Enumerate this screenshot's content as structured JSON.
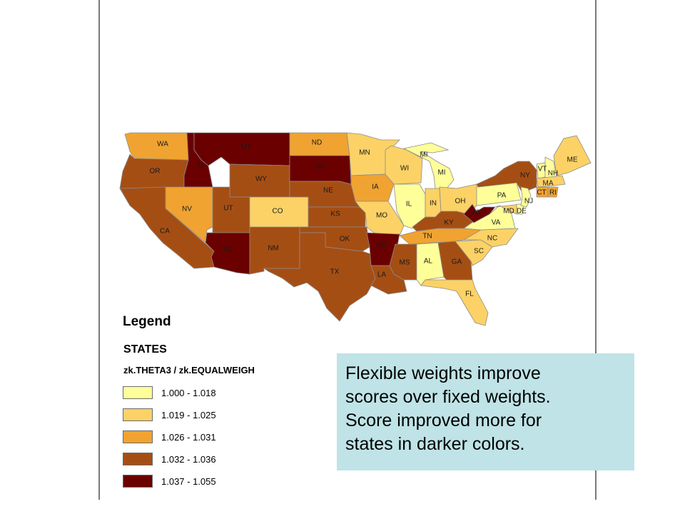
{
  "colors": {
    "c1": "#ffff99",
    "c2": "#fcd266",
    "c3": "#f0a330",
    "c4": "#a54e14",
    "c5": "#6b0000"
  },
  "legend": {
    "title": "Legend",
    "layer": "STATES",
    "field": "zk.THETA3 / zk.EQUALWEIGH",
    "classes": [
      {
        "label": "1.000 - 1.018",
        "color": "#ffff99"
      },
      {
        "label": "1.019 - 1.025",
        "color": "#fcd266"
      },
      {
        "label": "1.026 - 1.031",
        "color": "#f0a330"
      },
      {
        "label": "1.032 - 1.036",
        "color": "#a54e14"
      },
      {
        "label": "1.037 - 1.055",
        "color": "#6b0000"
      }
    ]
  },
  "states": [
    {
      "abbr": "WA",
      "class": 3
    },
    {
      "abbr": "OR",
      "class": 4
    },
    {
      "abbr": "CA",
      "class": 4
    },
    {
      "abbr": "ID",
      "class": 5
    },
    {
      "abbr": "NV",
      "class": 3
    },
    {
      "abbr": "MT",
      "class": 5
    },
    {
      "abbr": "WY",
      "class": 4
    },
    {
      "abbr": "UT",
      "class": 4
    },
    {
      "abbr": "AZ",
      "class": 5
    },
    {
      "abbr": "CO",
      "class": 2
    },
    {
      "abbr": "NM",
      "class": 4
    },
    {
      "abbr": "ND",
      "class": 3
    },
    {
      "abbr": "SD",
      "class": 5
    },
    {
      "abbr": "NE",
      "class": 4
    },
    {
      "abbr": "KS",
      "class": 4
    },
    {
      "abbr": "OK",
      "class": 4
    },
    {
      "abbr": "TX",
      "class": 4
    },
    {
      "abbr": "MN",
      "class": 2
    },
    {
      "abbr": "IA",
      "class": 3
    },
    {
      "abbr": "MO",
      "class": 2
    },
    {
      "abbr": "AR",
      "class": 5
    },
    {
      "abbr": "LA",
      "class": 4
    },
    {
      "abbr": "WI",
      "class": 2
    },
    {
      "abbr": "MI",
      "class": 1
    },
    {
      "abbr": "IL",
      "class": 1
    },
    {
      "abbr": "IN",
      "class": 2
    },
    {
      "abbr": "OH",
      "class": 2
    },
    {
      "abbr": "KY",
      "class": 4
    },
    {
      "abbr": "TN",
      "class": 3
    },
    {
      "abbr": "MS",
      "class": 4
    },
    {
      "abbr": "AL",
      "class": 1
    },
    {
      "abbr": "GA",
      "class": 4
    },
    {
      "abbr": "FL",
      "class": 2
    },
    {
      "abbr": "SC",
      "class": 2
    },
    {
      "abbr": "NC",
      "class": 2
    },
    {
      "abbr": "VA",
      "class": 1
    },
    {
      "abbr": "WV",
      "class": 5
    },
    {
      "abbr": "PA",
      "class": 1
    },
    {
      "abbr": "NY",
      "class": 4
    },
    {
      "abbr": "VT",
      "class": 1
    },
    {
      "abbr": "NH",
      "class": 1
    },
    {
      "abbr": "ME",
      "class": 2
    },
    {
      "abbr": "MA",
      "class": 2
    },
    {
      "abbr": "CT",
      "class": 3
    },
    {
      "abbr": "RI",
      "class": 3
    },
    {
      "abbr": "NJ",
      "class": 1
    },
    {
      "abbr": "DE",
      "class": 1
    },
    {
      "abbr": "MD",
      "class": 2
    }
  ],
  "callout": {
    "lines": [
      "Flexible weights improve",
      "scores over fixed weights.",
      "Score improved more for",
      "states in darker colors."
    ]
  }
}
